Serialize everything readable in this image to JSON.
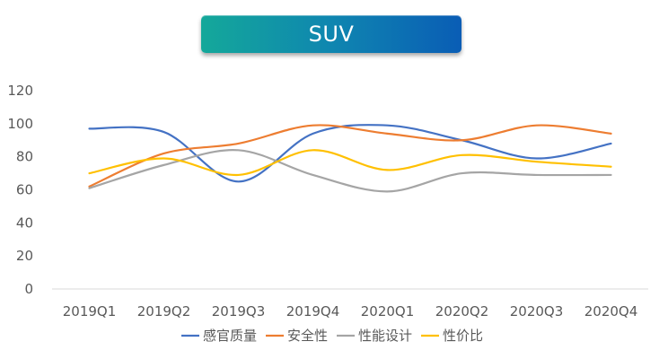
{
  "chart_data": {
    "type": "line",
    "title": "SUV",
    "xlabel": "",
    "ylabel": "",
    "categories": [
      "2019Q1",
      "2019Q2",
      "2019Q3",
      "2019Q4",
      "2020Q1",
      "2020Q2",
      "2020Q3",
      "2020Q4"
    ],
    "ylim": [
      0,
      120
    ],
    "yticks": [
      "0",
      "20",
      "40",
      "60",
      "80",
      "100",
      "120"
    ],
    "smooth": true,
    "grid": false,
    "legend_position": "bottom",
    "series": [
      {
        "name": "感官质量",
        "color": "#4472c4",
        "values": [
          97,
          95,
          65,
          94,
          99,
          90,
          79,
          88
        ]
      },
      {
        "name": "安全性",
        "color": "#ed7d31",
        "values": [
          62,
          82,
          88,
          99,
          94,
          90,
          99,
          94
        ]
      },
      {
        "name": "性能设计",
        "color": "#a5a5a5",
        "values": [
          61,
          75,
          84,
          69,
          59,
          70,
          69,
          69
        ]
      },
      {
        "name": "性价比",
        "color": "#ffc000",
        "values": [
          70,
          79,
          69,
          84,
          72,
          81,
          77,
          74
        ]
      }
    ]
  },
  "colors": {
    "banner_start": "#14a89a",
    "banner_end": "#0a5db5",
    "axis": "#d9d9d9",
    "tick_text": "#595959"
  }
}
